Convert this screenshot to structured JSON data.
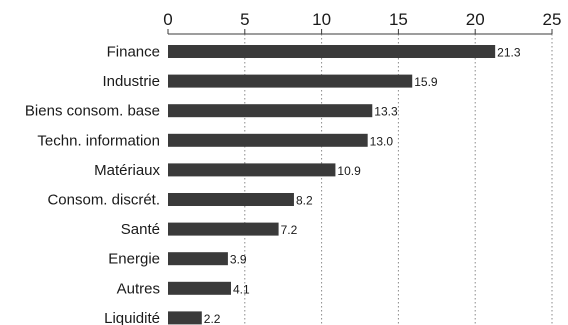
{
  "chart_data": {
    "type": "bar",
    "orientation": "horizontal",
    "title": "",
    "xlabel": "",
    "ylabel": "",
    "xlim": [
      0,
      25
    ],
    "x_ticks": [
      0,
      5,
      10,
      15,
      20,
      25
    ],
    "grid": true,
    "grid_style": "dotted vertical",
    "axis_position": "top",
    "bar_color": "#3a3a3a",
    "categories": [
      "Finance",
      "Industrie",
      "Biens consom. base",
      "Techn. information",
      "Matériaux",
      "Consom. discrét.",
      "Santé",
      "Energie",
      "Autres",
      "Liquidité"
    ],
    "values": [
      21.3,
      15.9,
      13.3,
      13.0,
      10.9,
      8.2,
      7.2,
      3.9,
      4.1,
      2.2
    ],
    "value_labels": [
      "21.3",
      "15.9",
      "13.3",
      "13.0",
      "10.9",
      "8.2",
      "7.2",
      "3.9",
      "4.1",
      "2.2"
    ]
  }
}
